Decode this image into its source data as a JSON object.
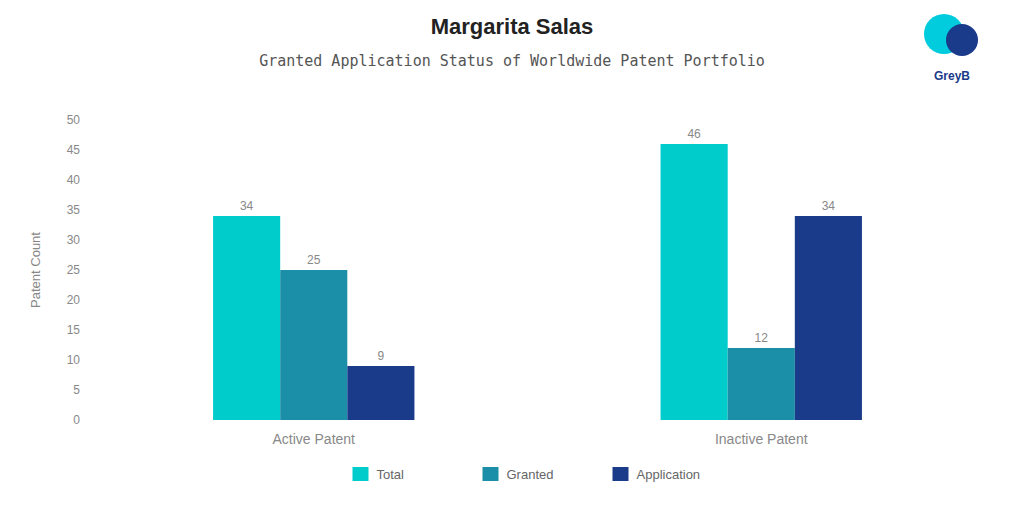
{
  "chart_data": {
    "type": "bar",
    "title": "Margarita Salas",
    "subtitle": "Granted Application Status of Worldwide Patent Portfolio",
    "annotations": [
      "GreyB"
    ],
    "categories": [
      "Active Patent",
      "Inactive Patent"
    ],
    "series": [
      {
        "name": "Total",
        "color": "#00CCCC",
        "values": [
          34,
          46
        ]
      },
      {
        "name": "Granted",
        "color": "#1B8FA8",
        "values": [
          25,
          12
        ]
      },
      {
        "name": "Application",
        "color": "#1A3A8A",
        "values": [
          9,
          34
        ]
      }
    ],
    "ylabel": "Patent Count",
    "ylim": [
      0,
      50
    ],
    "yticks": [
      0,
      5,
      10,
      15,
      20,
      25,
      30,
      35,
      40,
      45,
      50
    ],
    "grid": false,
    "legend": "bottom",
    "data_labels": true
  }
}
